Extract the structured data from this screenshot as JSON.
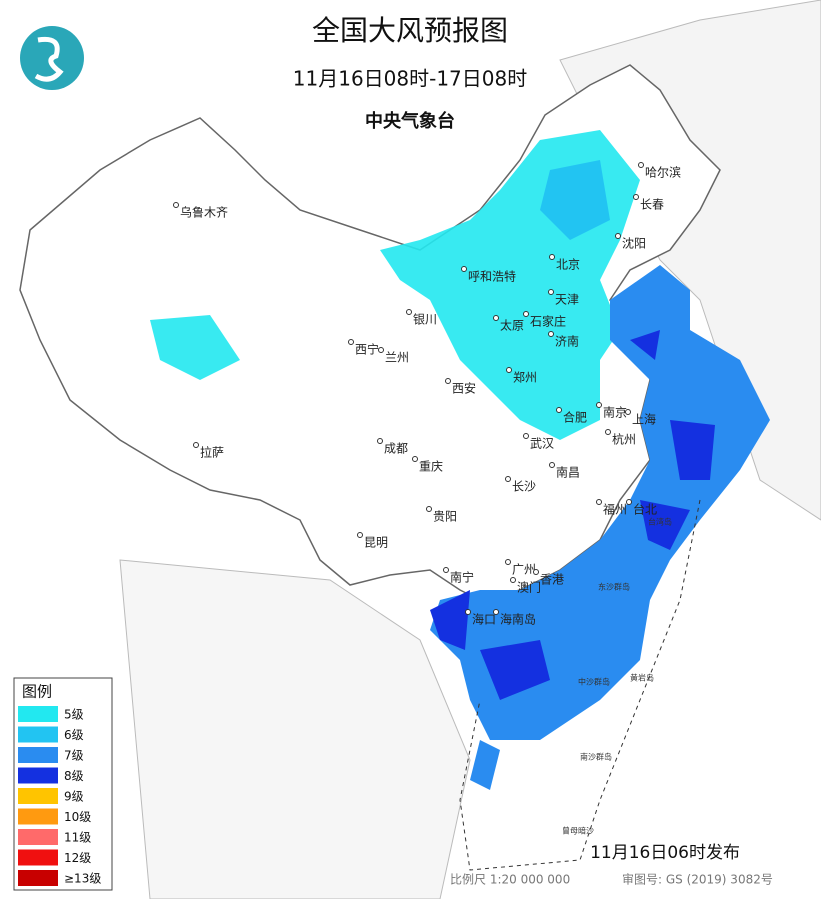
{
  "header": {
    "title": "全国大风预报图",
    "period": "11月16日08时-17日08时",
    "agency": "中央气象台"
  },
  "cities": [
    "哈尔滨",
    "长春",
    "沈阳",
    "乌鲁木齐",
    "呼和浩特",
    "北京",
    "天津",
    "银川",
    "太原",
    "石家庄",
    "西宁",
    "兰州",
    "济南",
    "郑州",
    "西安",
    "合肥",
    "南京",
    "上海",
    "杭州",
    "武汉",
    "成都",
    "拉萨",
    "重庆",
    "南昌",
    "长沙",
    "福州",
    "台北",
    "贵阳",
    "昆明",
    "南宁",
    "广州",
    "澳门",
    "香港",
    "海口",
    "海南岛"
  ],
  "islands": [
    "台湾岛",
    "东沙群岛",
    "中沙群岛",
    "黄岩岛",
    "南沙群岛",
    "曾母暗沙"
  ],
  "legend": {
    "title": "图例",
    "items": [
      {
        "label": "5级",
        "color": "#22e8f0"
      },
      {
        "label": "6级",
        "color": "#22c4f2"
      },
      {
        "label": "7级",
        "color": "#2a8cf0"
      },
      {
        "label": "8级",
        "color": "#1430e0"
      },
      {
        "label": "9级",
        "color": "#ffc400"
      },
      {
        "label": "10级",
        "color": "#ff9a10"
      },
      {
        "label": "11级",
        "color": "#ff6a6a"
      },
      {
        "label": "12级",
        "color": "#f01010"
      },
      {
        "label": "≥13级",
        "color": "#c80000"
      }
    ]
  },
  "footer": {
    "issued": "11月16日06时发布",
    "scale": "比例尺 1:20 000 000",
    "approval": "审图号: GS (2019) 3082号"
  }
}
